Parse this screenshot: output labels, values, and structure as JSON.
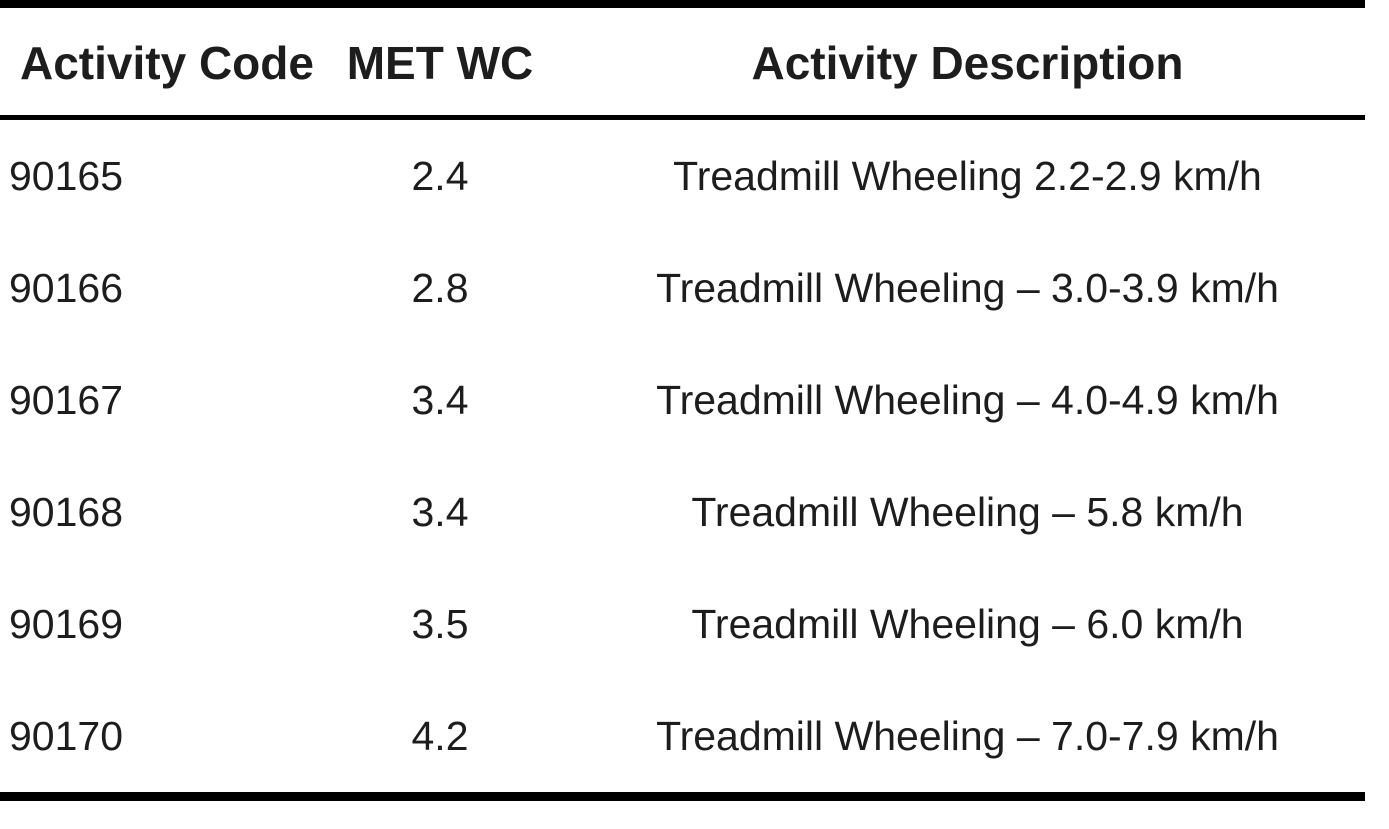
{
  "document": {
    "background": "#ffffff",
    "text_color": "#1d1d1d",
    "rule_color": "#000000"
  },
  "table": {
    "columns": [
      {
        "id": "code",
        "label": "Activity Code"
      },
      {
        "id": "met",
        "label": "MET WC"
      },
      {
        "id": "description",
        "label": "Activity Description"
      }
    ],
    "rows": [
      {
        "code": "90165",
        "met": "2.4",
        "description": "Treadmill Wheeling 2.2-2.9 km/h"
      },
      {
        "code": "90166",
        "met": "2.8",
        "description": "Treadmill Wheeling – 3.0-3.9 km/h"
      },
      {
        "code": "90167",
        "met": "3.4",
        "description": "Treadmill Wheeling – 4.0-4.9 km/h"
      },
      {
        "code": "90168",
        "met": "3.4",
        "description": "Treadmill Wheeling – 5.8 km/h"
      },
      {
        "code": "90169",
        "met": "3.5",
        "description": "Treadmill Wheeling – 6.0 km/h"
      },
      {
        "code": "90170",
        "met": "4.2",
        "description": "Treadmill Wheeling – 7.0-7.9 km/h"
      }
    ]
  }
}
